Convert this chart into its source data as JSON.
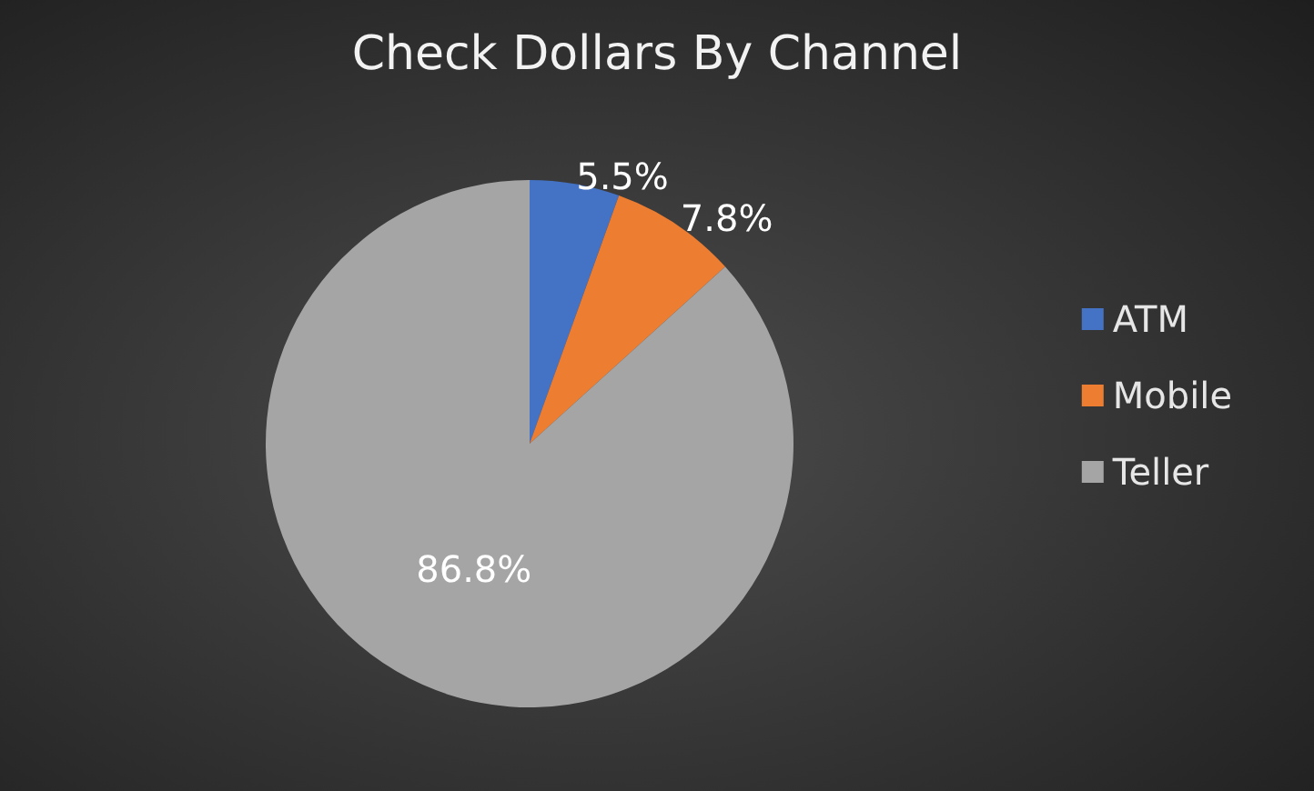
{
  "chart_data": {
    "type": "pie",
    "title": "Check Dollars By Channel",
    "categories": [
      "ATM",
      "Mobile",
      "Teller"
    ],
    "values": [
      5.5,
      7.8,
      86.8
    ],
    "colors": [
      "#4472c4",
      "#ed7d31",
      "#a5a5a5"
    ],
    "value_labels": [
      "5.5%",
      "7.8%",
      "86.8%"
    ],
    "legend": "right"
  }
}
